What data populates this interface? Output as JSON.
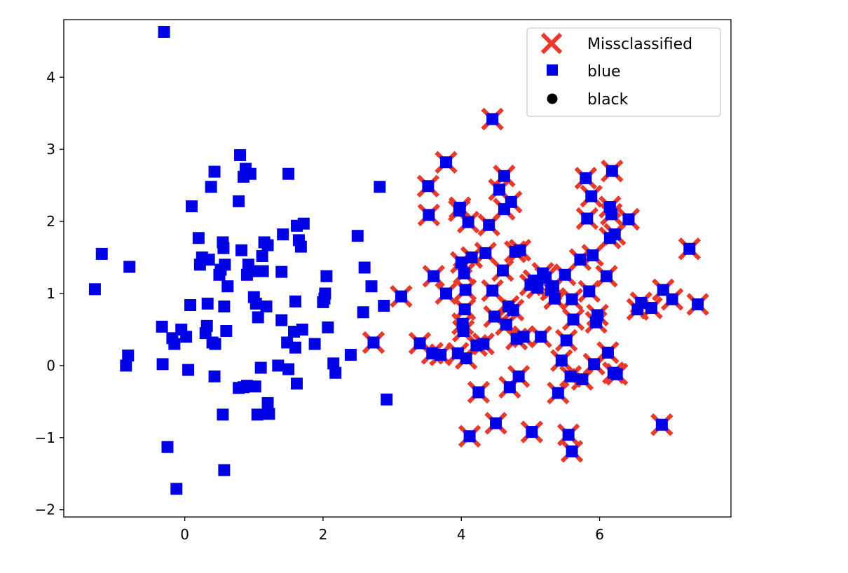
{
  "chart_data": {
    "type": "scatter",
    "title": "",
    "xlabel": "",
    "ylabel": "",
    "xlim": [
      -1.75,
      7.9
    ],
    "ylim": [
      -2.1,
      4.8
    ],
    "xticks": [
      0,
      2,
      4,
      6
    ],
    "yticks": [
      -2,
      -1,
      0,
      1,
      2,
      3,
      4
    ],
    "grid": false,
    "legend": {
      "placement": "top-right",
      "entries": [
        {
          "label": "Missclassified",
          "marker": "x",
          "color": "#e8392b"
        },
        {
          "label": "blue",
          "marker": "square",
          "color": "#0000e6"
        },
        {
          "label": "black",
          "marker": "circle",
          "color": "#000000"
        }
      ]
    },
    "series": [
      {
        "name": "blue",
        "marker": "square",
        "color": "#0000e6",
        "points": [
          [
            -0.3,
            4.63
          ],
          [
            -1.3,
            1.06
          ],
          [
            -1.2,
            1.55
          ],
          [
            -0.8,
            1.37
          ],
          [
            -0.85,
            0.0
          ],
          [
            -0.82,
            0.14
          ],
          [
            -0.33,
            0.54
          ],
          [
            -0.32,
            0.02
          ],
          [
            -0.18,
            0.38
          ],
          [
            -0.15,
            0.3
          ],
          [
            -0.05,
            0.5
          ],
          [
            0.02,
            0.4
          ],
          [
            0.05,
            -0.06
          ],
          [
            0.08,
            0.84
          ],
          [
            0.1,
            2.21
          ],
          [
            0.2,
            1.77
          ],
          [
            0.22,
            1.4
          ],
          [
            0.25,
            1.5
          ],
          [
            0.3,
            0.45
          ],
          [
            0.32,
            0.55
          ],
          [
            0.33,
            0.86
          ],
          [
            0.35,
            1.47
          ],
          [
            0.38,
            2.48
          ],
          [
            0.4,
            0.32
          ],
          [
            0.43,
            2.69
          ],
          [
            0.44,
            0.3
          ],
          [
            0.43,
            -0.15
          ],
          [
            0.5,
            1.26
          ],
          [
            0.52,
            1.33
          ],
          [
            0.55,
            1.71
          ],
          [
            0.56,
            1.63
          ],
          [
            0.57,
            0.82
          ],
          [
            0.58,
            1.4
          ],
          [
            0.6,
            0.48
          ],
          [
            0.62,
            1.1
          ],
          [
            0.55,
            -0.68
          ],
          [
            0.57,
            -1.45
          ],
          [
            0.78,
            2.28
          ],
          [
            0.8,
            2.92
          ],
          [
            0.82,
            1.6
          ],
          [
            0.85,
            2.62
          ],
          [
            0.88,
            2.73
          ],
          [
            0.9,
            1.26
          ],
          [
            0.92,
            1.4
          ],
          [
            0.95,
            2.66
          ],
          [
            0.98,
            1.31
          ],
          [
            1.0,
            0.95
          ],
          [
            1.03,
            0.86
          ],
          [
            1.06,
            0.67
          ],
          [
            1.1,
            -0.03
          ],
          [
            1.12,
            1.52
          ],
          [
            1.13,
            1.31
          ],
          [
            1.15,
            1.71
          ],
          [
            1.2,
            1.67
          ],
          [
            1.18,
            0.82
          ],
          [
            1.2,
            -0.52
          ],
          [
            1.22,
            -0.67
          ],
          [
            1.05,
            -0.68
          ],
          [
            0.85,
            -0.3
          ],
          [
            0.9,
            -0.28
          ],
          [
            1.02,
            -0.29
          ],
          [
            0.78,
            -0.31
          ],
          [
            -0.25,
            -1.13
          ],
          [
            -0.12,
            -1.71
          ],
          [
            1.35,
            0.0
          ],
          [
            1.4,
            1.3
          ],
          [
            1.42,
            1.82
          ],
          [
            1.4,
            0.63
          ],
          [
            1.5,
            2.66
          ],
          [
            1.48,
            0.32
          ],
          [
            1.5,
            -0.05
          ],
          [
            1.58,
            0.47
          ],
          [
            1.6,
            0.25
          ],
          [
            1.6,
            0.89
          ],
          [
            1.62,
            -0.25
          ],
          [
            1.62,
            1.94
          ],
          [
            1.65,
            1.74
          ],
          [
            1.68,
            1.65
          ],
          [
            1.7,
            0.5
          ],
          [
            1.72,
            1.97
          ],
          [
            1.88,
            0.3
          ],
          [
            2.0,
            0.88
          ],
          [
            2.02,
            0.93
          ],
          [
            2.03,
            1.0
          ],
          [
            2.05,
            1.24
          ],
          [
            2.07,
            0.53
          ],
          [
            2.15,
            0.03
          ],
          [
            2.18,
            -0.1
          ],
          [
            2.4,
            0.15
          ],
          [
            2.5,
            1.8
          ],
          [
            2.58,
            0.74
          ],
          [
            2.6,
            1.36
          ],
          [
            2.7,
            1.1
          ],
          [
            2.82,
            2.48
          ],
          [
            2.88,
            0.83
          ],
          [
            2.92,
            -0.47
          ]
        ]
      },
      {
        "name": "blue (misclassified)",
        "marker": "square",
        "color": "#0000e6",
        "points": [
          [
            2.73,
            0.32
          ],
          [
            3.13,
            0.96
          ],
          [
            3.4,
            0.31
          ],
          [
            3.52,
            2.49
          ],
          [
            3.53,
            2.09
          ],
          [
            3.58,
            0.17
          ],
          [
            3.6,
            1.24
          ],
          [
            3.7,
            0.15
          ],
          [
            3.78,
            1.0
          ],
          [
            3.78,
            2.82
          ],
          [
            3.95,
            0.17
          ],
          [
            3.97,
            2.15
          ],
          [
            3.98,
            2.19
          ],
          [
            4.0,
            1.43
          ],
          [
            4.02,
            0.58
          ],
          [
            4.03,
            0.48
          ],
          [
            4.04,
            1.28
          ],
          [
            4.05,
            0.78
          ],
          [
            4.06,
            1.05
          ],
          [
            4.07,
            0.1
          ],
          [
            4.1,
            1.99
          ],
          [
            4.12,
            -0.98
          ],
          [
            4.15,
            1.5
          ],
          [
            4.22,
            0.28
          ],
          [
            4.25,
            -0.37
          ],
          [
            4.32,
            0.3
          ],
          [
            4.35,
            1.56
          ],
          [
            4.4,
            1.95
          ],
          [
            4.45,
            1.04
          ],
          [
            4.45,
            3.42
          ],
          [
            4.48,
            0.68
          ],
          [
            4.5,
            -0.8
          ],
          [
            4.55,
            2.44
          ],
          [
            4.6,
            1.32
          ],
          [
            4.62,
            2.63
          ],
          [
            4.62,
            2.17
          ],
          [
            4.65,
            0.57
          ],
          [
            4.68,
            0.82
          ],
          [
            4.7,
            -0.3
          ],
          [
            4.72,
            2.27
          ],
          [
            4.75,
            0.77
          ],
          [
            4.78,
            1.58
          ],
          [
            4.8,
            0.37
          ],
          [
            4.83,
            -0.15
          ],
          [
            4.85,
            1.6
          ],
          [
            4.9,
            0.4
          ],
          [
            5.0,
            1.12
          ],
          [
            5.02,
            -0.92
          ],
          [
            5.05,
            1.18
          ],
          [
            5.1,
            1.08
          ],
          [
            5.15,
            0.4
          ],
          [
            5.18,
            1.28
          ],
          [
            5.22,
            1.22
          ],
          [
            5.3,
            1.05
          ],
          [
            5.33,
            1.1
          ],
          [
            5.35,
            0.93
          ],
          [
            5.4,
            -0.38
          ],
          [
            5.45,
            0.07
          ],
          [
            5.5,
            1.26
          ],
          [
            5.52,
            0.35
          ],
          [
            5.55,
            -0.96
          ],
          [
            5.58,
            -0.15
          ],
          [
            5.6,
            -1.19
          ],
          [
            5.6,
            0.92
          ],
          [
            5.62,
            0.64
          ],
          [
            5.72,
            1.47
          ],
          [
            5.75,
            -0.19
          ],
          [
            5.8,
            2.6
          ],
          [
            5.82,
            2.04
          ],
          [
            5.85,
            1.03
          ],
          [
            5.88,
            2.35
          ],
          [
            5.9,
            1.53
          ],
          [
            5.92,
            0.02
          ],
          [
            5.95,
            0.6
          ],
          [
            5.97,
            0.7
          ],
          [
            6.1,
            1.24
          ],
          [
            6.12,
            0.18
          ],
          [
            6.15,
            1.77
          ],
          [
            6.15,
            2.2
          ],
          [
            6.17,
            2.1
          ],
          [
            6.18,
            2.7
          ],
          [
            6.2,
            -0.1
          ],
          [
            6.22,
            1.82
          ],
          [
            6.25,
            -0.12
          ],
          [
            6.42,
            2.03
          ],
          [
            6.55,
            0.78
          ],
          [
            6.6,
            0.87
          ],
          [
            6.75,
            0.8
          ],
          [
            6.9,
            -0.82
          ],
          [
            6.92,
            1.05
          ],
          [
            7.05,
            0.92
          ],
          [
            7.3,
            1.62
          ],
          [
            7.42,
            0.85
          ]
        ]
      }
    ]
  }
}
